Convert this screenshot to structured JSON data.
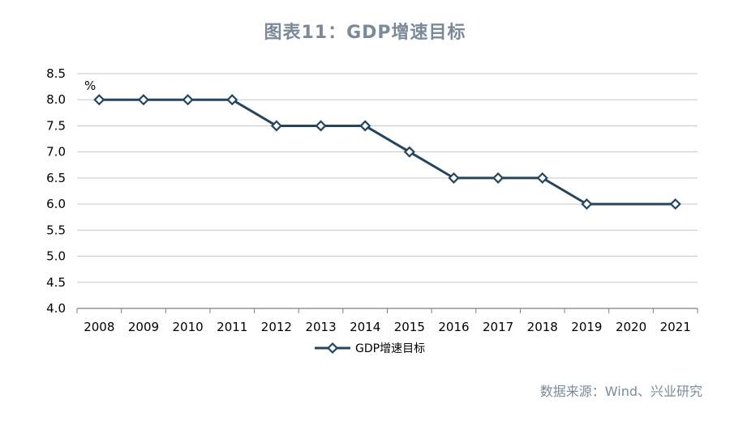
{
  "title": "图表11：GDP增速目标",
  "source": "数据来源：Wind、兴业研究",
  "colors": {
    "series": "#23455f",
    "grid": "#c8c8c8",
    "axis": "#7f7f7f",
    "title": "#7a8a99"
  },
  "chart_data": {
    "type": "line",
    "title": "图表11：GDP增速目标",
    "xlabel": "",
    "ylabel": "%",
    "unit_label": "%",
    "categories": [
      "2008",
      "2009",
      "2010",
      "2011",
      "2012",
      "2013",
      "2014",
      "2015",
      "2016",
      "2017",
      "2018",
      "2019",
      "2020",
      "2021"
    ],
    "series": [
      {
        "name": "GDP增速目标",
        "values": [
          8.0,
          8.0,
          8.0,
          8.0,
          7.5,
          7.5,
          7.5,
          7.0,
          6.5,
          6.5,
          6.5,
          6.0,
          null,
          6.0
        ]
      }
    ],
    "ylim": [
      4.0,
      8.5
    ],
    "yticks": [
      "4.0",
      "4.5",
      "5.0",
      "5.5",
      "6.0",
      "6.5",
      "7.0",
      "7.5",
      "8.0",
      "8.5"
    ],
    "grid": true,
    "legend": "bottom-center"
  }
}
